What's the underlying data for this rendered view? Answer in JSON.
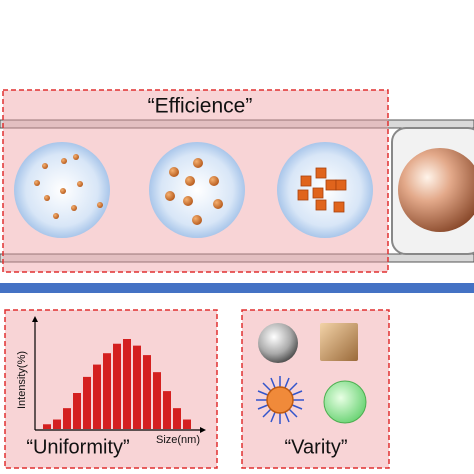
{
  "efficiency_panel": {
    "label": "“Efficience”"
  },
  "uniformity_panel": {
    "label": "“Uniformity”",
    "y_axis_label": "Intensity(%)",
    "x_axis_label": "Size(nm)",
    "histogram": {
      "values": [
        5,
        10,
        22,
        38,
        55,
        68,
        80,
        90,
        95,
        88,
        78,
        60,
        40,
        22,
        10
      ]
    }
  },
  "variety_panel": {
    "label": "“Varity”"
  }
}
